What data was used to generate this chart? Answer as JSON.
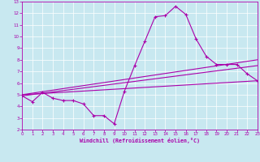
{
  "xlabel": "Windchill (Refroidissement éolien,°C)",
  "bg_color": "#c8e8f0",
  "line_color": "#aa00aa",
  "xlim": [
    0,
    23
  ],
  "ylim": [
    2,
    13
  ],
  "xticks": [
    0,
    1,
    2,
    3,
    4,
    5,
    6,
    7,
    8,
    9,
    10,
    11,
    12,
    13,
    14,
    15,
    16,
    17,
    18,
    19,
    20,
    21,
    22,
    23
  ],
  "yticks": [
    2,
    3,
    4,
    5,
    6,
    7,
    8,
    9,
    10,
    11,
    12,
    13
  ],
  "line1_x": [
    0,
    1,
    2,
    3,
    4,
    5,
    6,
    7,
    8,
    9,
    10,
    11,
    12,
    13,
    14,
    15,
    16,
    17,
    18,
    19,
    20,
    21,
    22,
    23
  ],
  "line1_y": [
    4.9,
    4.4,
    5.2,
    4.7,
    4.5,
    4.5,
    4.2,
    3.2,
    3.2,
    2.5,
    5.3,
    7.5,
    9.6,
    11.7,
    11.8,
    12.6,
    11.9,
    9.8,
    8.3,
    7.6,
    7.6,
    7.6,
    6.8,
    6.2
  ],
  "line2_x": [
    0,
    23
  ],
  "line2_y": [
    5.0,
    6.2
  ],
  "line3_x": [
    0,
    23
  ],
  "line3_y": [
    4.9,
    7.5
  ],
  "line4_x": [
    0,
    23
  ],
  "line4_y": [
    5.0,
    8.0
  ]
}
